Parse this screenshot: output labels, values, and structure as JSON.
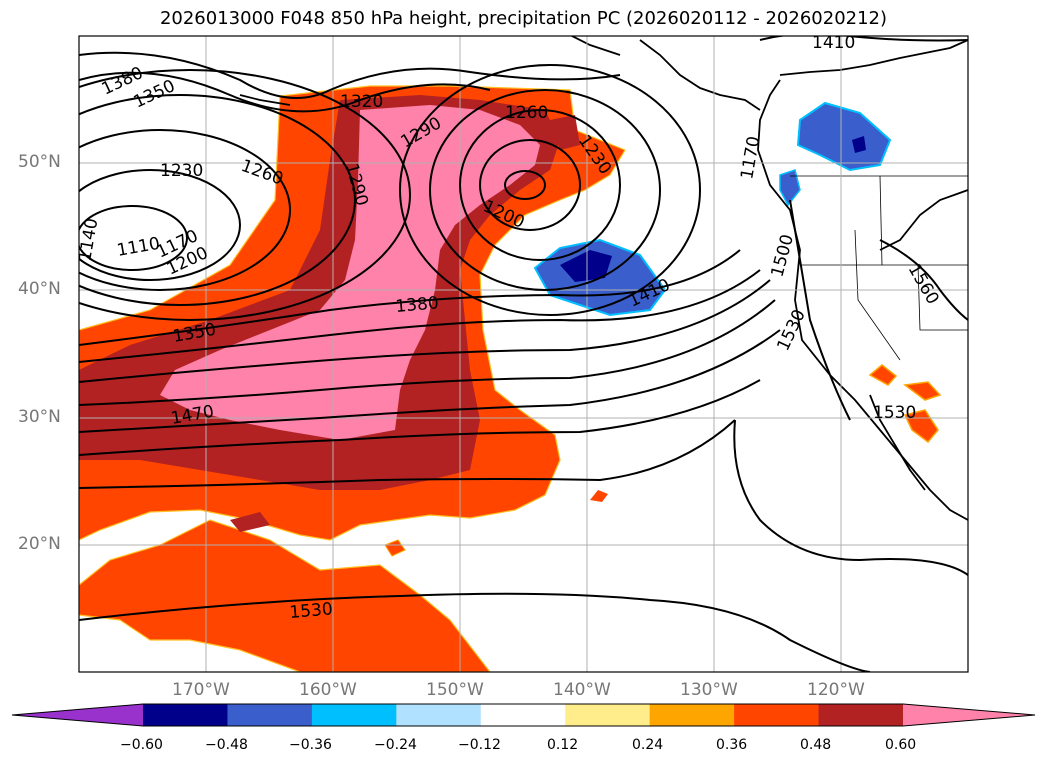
{
  "title": "2026013000 F048 850 hPa height, precipitation PC (2026020112 - 2026020212)",
  "map": {
    "lat_labels": [
      "50°N",
      "40°N",
      "30°N",
      "20°N"
    ],
    "lon_labels": [
      "170°W",
      "160°W",
      "150°W",
      "140°W",
      "130°W",
      "120°W"
    ],
    "contour_labels": [
      "1380",
      "1350",
      "1320",
      "1290",
      "1260",
      "1230",
      "1260",
      "1290",
      "1230",
      "1200",
      "1140",
      "1110",
      "1170",
      "1200",
      "1380",
      "1350",
      "1470",
      "1410",
      "1530",
      "1410",
      "1170",
      "1500",
      "1530",
      "1560",
      "1530"
    ],
    "fill_colors": {
      "orange_red": "#ff4500",
      "dark_red": "#b22222",
      "pink": "#ff82ab",
      "blue": "#3a5fcd",
      "navy": "#00008b",
      "light_blue": "#00bfff",
      "gold": "#ffa500"
    }
  },
  "colorbar": {
    "colors": [
      "#9932cc",
      "#00008b",
      "#3a5fcd",
      "#00bfff",
      "#b0e2ff",
      "#ffffff",
      "#ffec8b",
      "#ffa500",
      "#ff4500",
      "#b22222",
      "#ff82ab"
    ],
    "ticks": [
      "−0.60",
      "−0.48",
      "−0.36",
      "−0.24",
      "−0.12",
      "0.12",
      "0.24",
      "0.36",
      "0.48",
      "0.60"
    ]
  }
}
